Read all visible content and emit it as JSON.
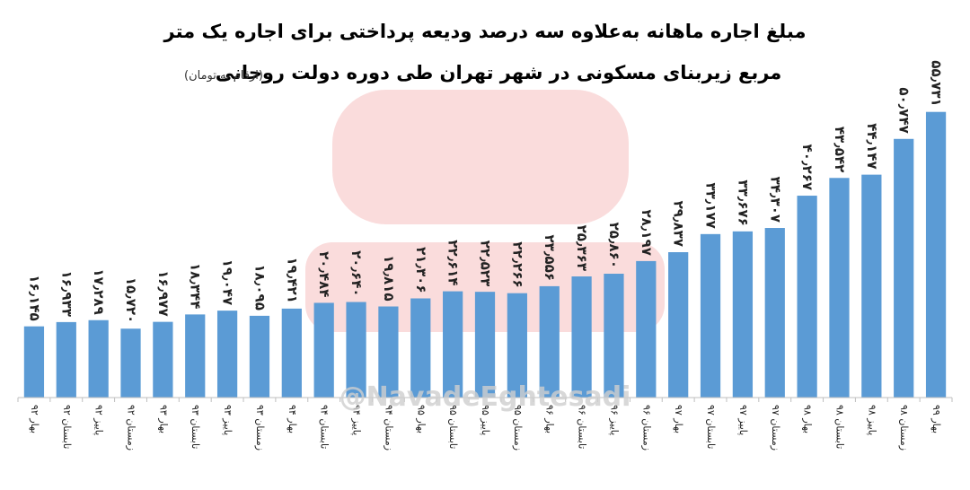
{
  "chart_data": {
    "type": "bar",
    "title": "مبلغ اجاره ماهانه به‌علاوه سه درصد ودیعه پرداختی برای اجاره یک متر",
    "subtitle": "مربع زیربنای مسکونی در شهر تهران طی دوره دولت روحانی",
    "note": "(ارقام به تومان)",
    "watermark": "@NavadeEghtesadi",
    "categories": [
      "بهار ۹۲",
      "تابستان ۹۲",
      "پاییز ۹۲",
      "زمستان ۹۲",
      "بهار ۹۳",
      "تابستان ۹۳",
      "پاییز ۹۳",
      "زمستان ۹۳",
      "بهار ۹۴",
      "تابستان ۹۴",
      "پاییز ۹۴",
      "زمستان ۹۴",
      "بهار ۹۵",
      "تابستان ۹۵",
      "پاییز ۹۵",
      "زمستان ۹۵",
      "بهار ۹۶",
      "تابستان ۹۶",
      "پاییز ۹۶",
      "زمستان ۹۶",
      "بهار ۹۷",
      "تابستان ۹۷",
      "پاییز ۹۷",
      "زمستان ۹۷",
      "بهار ۹۸",
      "تابستان ۹۸",
      "پاییز ۹۸",
      "زمستان ۹۸",
      "بهار ۹۹"
    ],
    "values": [
      16145,
      16933,
      17289,
      15720,
      16977,
      18344,
      19047,
      18095,
      19421,
      20484,
      20640,
      19815,
      21306,
      22614,
      22523,
      22266,
      23556,
      25363,
      25860,
      28197,
      29837,
      33177,
      33676,
      34307,
      40267,
      43542,
      44147,
      50747,
      55731
    ],
    "value_labels": [
      "۱۶٫۱۴۵",
      "۱۶٫۹۳۳",
      "۱۷٫۲۸۹",
      "۱۵٫۷۲۰",
      "۱۶٫۹۷۷",
      "۱۸٫۳۴۴",
      "۱۹٫۰۴۷",
      "۱۸٫۰۹۵",
      "۱۹٫۴۲۱",
      "۲۰٫۴۸۴",
      "۲۰٫۶۴۰",
      "۱۹٫۸۱۵",
      "۲۱٫۳۰۶",
      "۲۲٫۶۱۴",
      "۲۲٫۵۲۳",
      "۲۲٫۲۶۶",
      "۲۳٫۵۵۶",
      "۲۵٫۳۶۳",
      "۲۵٫۸۶۰",
      "۲۸٫۱۹۷",
      "۲۹٫۸۳۷",
      "۳۳٫۱۷۷",
      "۳۳٫۶۷۶",
      "۳۴٫۳۰۷",
      "۴۰٫۲۶۷",
      "۴۳٫۵۴۲",
      "۴۴٫۱۴۷",
      "۵۰٫۷۴۷",
      "۵۵٫۷۳۱"
    ],
    "color": "#5b9bd5",
    "ylim": [
      3000,
      58000
    ]
  }
}
